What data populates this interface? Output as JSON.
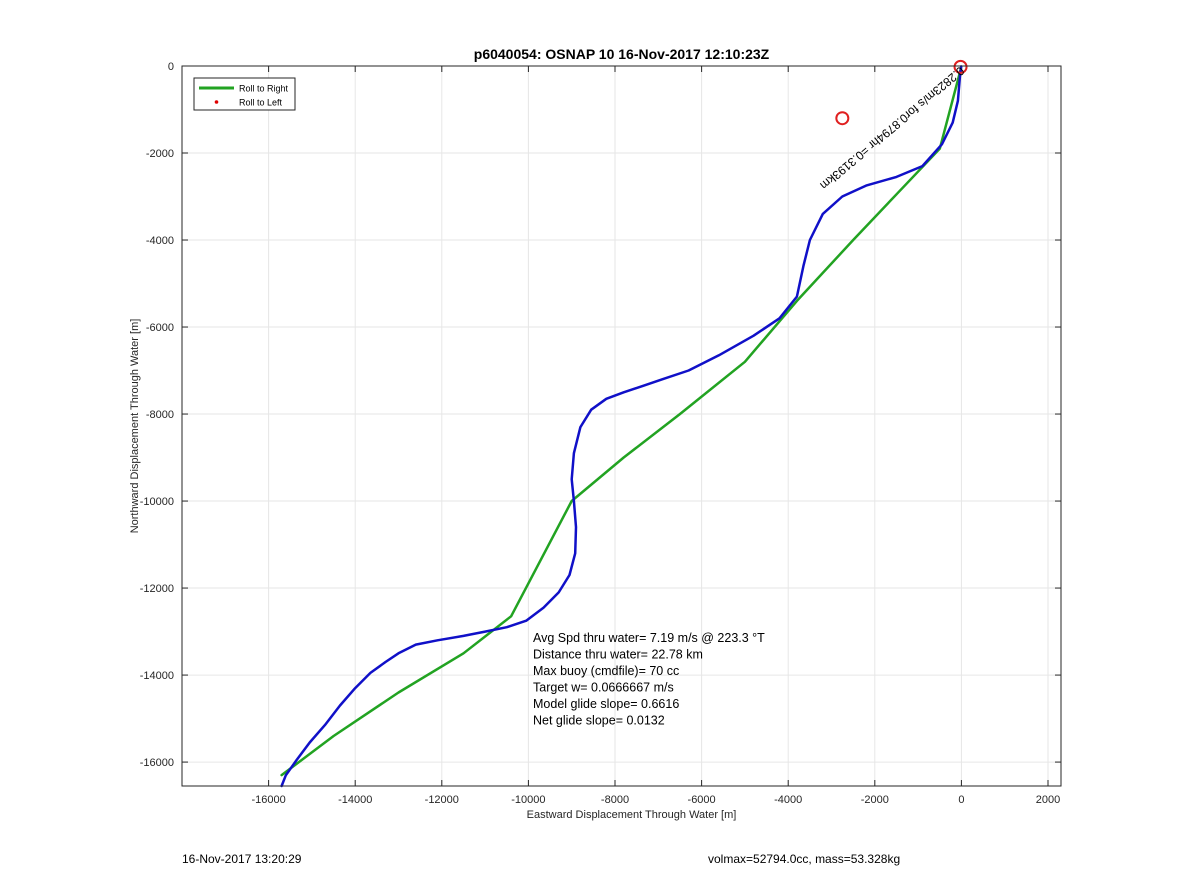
{
  "chart_data": {
    "type": "line",
    "title": "p6040054: OSNAP 10 16-Nov-2017 12:10:23Z",
    "xlabel": "Eastward Displacement Through Water [m]",
    "ylabel": "Northward Displacement Through Water [m]",
    "xlim": [
      -18000,
      2300
    ],
    "ylim": [
      -16550,
      0
    ],
    "xticks": [
      -16000,
      -14000,
      -12000,
      -10000,
      -8000,
      -6000,
      -4000,
      -2000,
      0,
      2000
    ],
    "yticks": [
      0,
      -2000,
      -4000,
      -6000,
      -8000,
      -10000,
      -12000,
      -14000,
      -16000
    ],
    "grid": true,
    "legend": {
      "position": "top-left",
      "entries": [
        {
          "label": "Roll to Right",
          "color": "#22a322",
          "marker": "line"
        },
        {
          "label": "Roll to Left",
          "color": "#e00000",
          "marker": "dot"
        }
      ]
    },
    "series": [
      {
        "color": "#22a322",
        "x": [
          -10,
          -500,
          -1500,
          -2500,
          -3800,
          -5000,
          -6500,
          -7800,
          -9000,
          -10400,
          -11500,
          -13000,
          -14500,
          -15700
        ],
        "y": [
          -50,
          -1900,
          -2950,
          -4000,
          -5400,
          -6800,
          -8000,
          -9000,
          -10000,
          -12650,
          -13500,
          -14400,
          -15400,
          -16300
        ]
      },
      {
        "color": "#1010c8",
        "x": [
          -5,
          -30,
          -80,
          -200,
          -450,
          -900,
          -1500,
          -2200,
          -2750,
          -3200,
          -3500,
          -3650,
          -3800,
          -4200,
          -4800,
          -5600,
          -6300,
          -6900,
          -7350,
          -7800,
          -8200,
          -8550,
          -8800,
          -8950,
          -9000,
          -8950,
          -8900,
          -8920,
          -9050,
          -9300,
          -9650,
          -10050,
          -10500,
          -11000,
          -11500,
          -12100,
          -12600,
          -13000,
          -13300,
          -13650,
          -14000,
          -14350,
          -14700,
          -15050,
          -15350,
          -15600,
          -15700
        ],
        "y": [
          -10,
          -200,
          -800,
          -1300,
          -1800,
          -2300,
          -2550,
          -2750,
          -3000,
          -3400,
          -4000,
          -4600,
          -5300,
          -5800,
          -6200,
          -6650,
          -7000,
          -7200,
          -7350,
          -7500,
          -7650,
          -7900,
          -8300,
          -8900,
          -9500,
          -10000,
          -10600,
          -11200,
          -11700,
          -12100,
          -12450,
          -12750,
          -12900,
          -13000,
          -13100,
          -13200,
          -13300,
          -13500,
          -13700,
          -13950,
          -14300,
          -14700,
          -15150,
          -15550,
          -15950,
          -16300,
          -16550
        ]
      }
    ],
    "markers": [
      {
        "x": -2750,
        "y": -1200,
        "color": "#e02020",
        "shape": "open-circle"
      },
      {
        "x": -20,
        "y": -20,
        "color": "#e02020",
        "shape": "open-circle"
      }
    ],
    "annotations": {
      "current_label": "0.2823m/s for0.8794hr =0.3193km",
      "stats": [
        "Avg Spd thru water=  7.19 m/s @ 223.3 °T",
        "Distance thru water= 22.78 km",
        "Max buoy (cmdfile)= 70 cc",
        "Target w= 0.0666667 m/s",
        "Model glide slope= 0.6616",
        "Net glide slope= 0.0132"
      ]
    }
  },
  "footer": {
    "left": "16-Nov-2017 13:20:29",
    "right": "volmax=52794.0cc, mass=53.328kg"
  }
}
